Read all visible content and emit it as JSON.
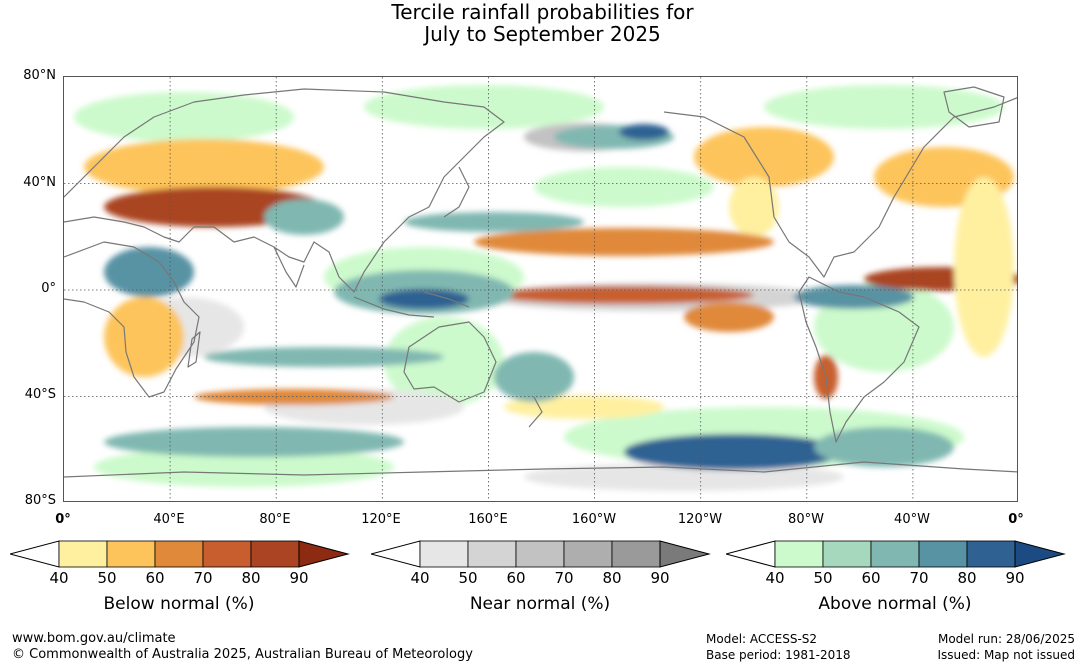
{
  "title": {
    "line1": "Tercile rainfall probabilities for",
    "line2": "July to September 2025"
  },
  "map": {
    "lat_labels": [
      "80°N",
      "40°N",
      "0°",
      "40°S",
      "80°S"
    ],
    "lon_labels": [
      "0°",
      "40°E",
      "80°E",
      "120°E",
      "160°E",
      "160°W",
      "120°W",
      "80°W",
      "40°W",
      "0°"
    ],
    "colors": {
      "below": [
        "#fff0a0",
        "#fdc45c",
        "#e0893a",
        "#c85e2d",
        "#aa4423",
        "#8c2a12"
      ],
      "near": [
        "#e6e6e6",
        "#d4d4d4",
        "#c2c2c2",
        "#aeaeae",
        "#9a9a9a",
        "#7a7a7a"
      ],
      "above": [
        "#ccfacc",
        "#a6d8bd",
        "#80b8b1",
        "#5893a4",
        "#2f6293",
        "#1b4b82"
      ],
      "coast": "#777777"
    }
  },
  "legend": {
    "ticks": [
      "40",
      "50",
      "60",
      "70",
      "80",
      "90"
    ],
    "below_label": "Below normal (%)",
    "near_label": "Near normal (%)",
    "above_label": "Above normal (%)"
  },
  "footer": {
    "url": "www.bom.gov.au/climate",
    "copyright": "© Commonwealth of Australia 2025, Australian Bureau of Meteorology",
    "model": "Model: ACCESS-S2",
    "base_period": "Base period: 1981-2018",
    "model_run": "Model run: 28/06/2025",
    "issued": "Issued: Map not issued"
  }
}
